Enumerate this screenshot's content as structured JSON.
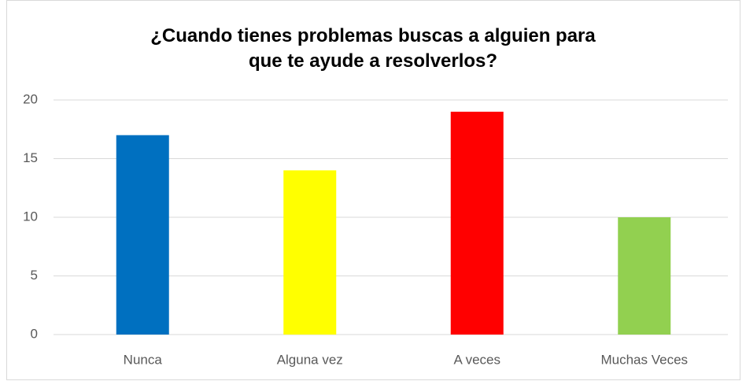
{
  "chart_data": {
    "type": "bar",
    "title": "¿Cuando tienes problemas buscas a alguien para que te ayude a resolverlos?",
    "categories": [
      "Nunca",
      "Alguna vez",
      "A veces",
      "Muchas Veces"
    ],
    "values": [
      17,
      14,
      19,
      10
    ],
    "colors": [
      "#0070c0",
      "#ffff00",
      "#ff0000",
      "#92d050"
    ],
    "ylim": [
      0,
      20
    ],
    "yticks": [
      0,
      5,
      10,
      15,
      20
    ],
    "grid": true
  }
}
